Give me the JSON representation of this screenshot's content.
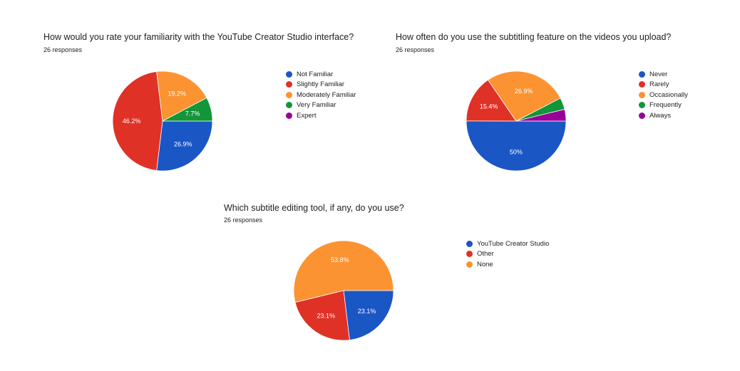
{
  "chart_data": [
    {
      "type": "pie",
      "title": "How would you rate your familiarity with the YouTube Creator Studio interface?",
      "subtitle": "26 responses",
      "categories": [
        "Not Familiar",
        "Slightly Familiar",
        "Moderately Familiar",
        "Very Familiar",
        "Expert"
      ],
      "values": [
        26.9,
        46.2,
        19.2,
        7.7,
        0
      ],
      "value_labels": [
        "26.9%",
        "46.2%",
        "19.2%",
        "7.7%",
        ""
      ],
      "colors": [
        "#1a56c4",
        "#e03127",
        "#fb9332",
        "#129639",
        "#990099"
      ],
      "legend": "right"
    },
    {
      "type": "pie",
      "title": "How often do you use the subtitling feature on the videos you upload?",
      "subtitle": "26 responses",
      "categories": [
        "Never",
        "Rarely",
        "Occasionally",
        "Frequently",
        "Always"
      ],
      "values": [
        50,
        15.4,
        26.9,
        3.8,
        3.8
      ],
      "value_labels": [
        "50%",
        "15.4%",
        "26.9%",
        "",
        ""
      ],
      "colors": [
        "#1a56c4",
        "#e03127",
        "#fb9332",
        "#129639",
        "#990099"
      ],
      "legend": "right"
    },
    {
      "type": "pie",
      "title": "Which subtitle editing tool, if any, do you use?",
      "subtitle": "26 responses",
      "categories": [
        "YouTube Creator Studio",
        "Other",
        "None"
      ],
      "values": [
        23.1,
        23.1,
        53.8
      ],
      "value_labels": [
        "23.1%",
        "23.1%",
        "53.8%"
      ],
      "colors": [
        "#1a56c4",
        "#e03127",
        "#fb9332"
      ],
      "legend": "right"
    }
  ]
}
